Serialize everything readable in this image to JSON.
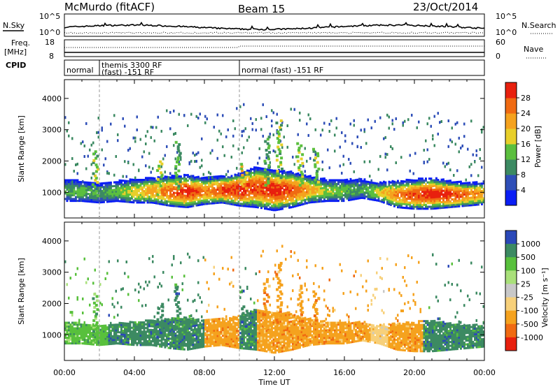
{
  "header": {
    "title": "McMurdo (fitACF)",
    "beam": "Beam 15",
    "date": "23/Oct/2014"
  },
  "strips": {
    "nsky_label": "N.Sky",
    "nsearch_label": "N.Search",
    "nsky_ticks": [
      "10^5",
      "10^0"
    ],
    "nsearch_ticks": [
      "10^5",
      "10^0"
    ],
    "freq_label_1": "Freq.",
    "freq_label_2": "[MHz]",
    "freq_ticks": [
      "18",
      "8"
    ],
    "nave_label": "Nave",
    "nave_ticks": [
      "60",
      "0"
    ],
    "cpid_label": "CPID",
    "cpid_segments": [
      {
        "line1": "normal",
        "line2": "",
        "x_start": 0.0,
        "x_end": 2.0
      },
      {
        "line1": "themis 3300 RF",
        "line2": "(fast) -151 RF",
        "x_start": 2.0,
        "x_end": 10.0
      },
      {
        "line1": "normal (fast) -151 RF",
        "line2": "",
        "x_start": 10.0,
        "x_end": 24.0
      }
    ]
  },
  "chart_data": [
    {
      "type": "heatmap",
      "panel": "power",
      "ylabel": "Slant Range [km]",
      "xlabel": "Time UT",
      "xlim": [
        0,
        24
      ],
      "ylim": [
        180,
        4600
      ],
      "x_ticks": [
        "00:00",
        "04:00",
        "08:00",
        "12:00",
        "16:00",
        "20:00",
        "00:00"
      ],
      "y_ticks": [
        "1000",
        "2000",
        "3000",
        "4000"
      ],
      "colorbar": {
        "label": "Power [dB]",
        "ticks": [
          "28",
          "24",
          "20",
          "16",
          "12",
          "8",
          "4"
        ],
        "range": [
          0,
          32
        ],
        "colors": [
          "#0a1ef5",
          "#2f4fb8",
          "#3c8a62",
          "#5bbf3e",
          "#e8cf2a",
          "#f5a21e",
          "#f06a12",
          "#e8200e"
        ]
      },
      "echo_band": [
        {
          "x": 0.0,
          "low": 700,
          "high": 1400,
          "peak": 12
        },
        {
          "x": 1.0,
          "low": 700,
          "high": 1350,
          "peak": 14
        },
        {
          "x": 2.0,
          "low": 650,
          "high": 1300,
          "peak": 10
        },
        {
          "x": 3.0,
          "low": 700,
          "high": 1350,
          "peak": 14
        },
        {
          "x": 4.0,
          "low": 650,
          "high": 1400,
          "peak": 18
        },
        {
          "x": 5.0,
          "low": 650,
          "high": 1450,
          "peak": 22
        },
        {
          "x": 6.0,
          "low": 550,
          "high": 1500,
          "peak": 26
        },
        {
          "x": 7.0,
          "low": 500,
          "high": 1550,
          "peak": 30
        },
        {
          "x": 8.0,
          "low": 600,
          "high": 1450,
          "peak": 24
        },
        {
          "x": 9.0,
          "low": 650,
          "high": 1500,
          "peak": 28
        },
        {
          "x": 10.0,
          "low": 550,
          "high": 1600,
          "peak": 30
        },
        {
          "x": 11.0,
          "low": 500,
          "high": 1800,
          "peak": 28
        },
        {
          "x": 12.0,
          "low": 400,
          "high": 1700,
          "peak": 30
        },
        {
          "x": 13.0,
          "low": 500,
          "high": 1650,
          "peak": 28
        },
        {
          "x": 14.0,
          "low": 650,
          "high": 1500,
          "peak": 22
        },
        {
          "x": 15.0,
          "low": 700,
          "high": 1400,
          "peak": 16
        },
        {
          "x": 16.0,
          "low": 700,
          "high": 1400,
          "peak": 14
        },
        {
          "x": 17.0,
          "low": 800,
          "high": 1400,
          "peak": 12
        },
        {
          "x": 18.0,
          "low": 700,
          "high": 1300,
          "peak": 18
        },
        {
          "x": 19.0,
          "low": 500,
          "high": 1350,
          "peak": 24
        },
        {
          "x": 20.0,
          "low": 450,
          "high": 1400,
          "peak": 28
        },
        {
          "x": 21.0,
          "low": 450,
          "high": 1450,
          "peak": 30
        },
        {
          "x": 22.0,
          "low": 500,
          "high": 1350,
          "peak": 30
        },
        {
          "x": 23.0,
          "low": 550,
          "high": 1300,
          "peak": 26
        },
        {
          "x": 24.0,
          "low": 600,
          "high": 1300,
          "peak": 22
        }
      ],
      "streaks": [
        {
          "x": 1.7,
          "low": 800,
          "high": 2300,
          "value": 10
        },
        {
          "x": 5.4,
          "low": 900,
          "high": 2000,
          "value": 12
        },
        {
          "x": 6.4,
          "low": 1100,
          "high": 2600,
          "value": 8
        },
        {
          "x": 10.2,
          "low": 1100,
          "high": 1900,
          "value": 14
        },
        {
          "x": 11.5,
          "low": 1200,
          "high": 2800,
          "value": 8
        },
        {
          "x": 12.2,
          "low": 1300,
          "high": 3300,
          "value": 10
        },
        {
          "x": 13.4,
          "low": 1200,
          "high": 2600,
          "value": 12
        },
        {
          "x": 14.3,
          "low": 1300,
          "high": 2400,
          "value": 10
        }
      ]
    },
    {
      "type": "heatmap",
      "panel": "velocity",
      "ylabel": "Slant Range [km]",
      "xlabel": "Time UT",
      "xlim": [
        0,
        24
      ],
      "ylim": [
        180,
        4600
      ],
      "x_ticks": [
        "00:00",
        "04:00",
        "08:00",
        "12:00",
        "16:00",
        "20:00",
        "00:00"
      ],
      "y_ticks": [
        "1000",
        "2000",
        "3000",
        "4000"
      ],
      "colorbar": {
        "label": "Velocity [m s⁻¹]",
        "ticks": [
          "1000",
          "500",
          "100",
          "25",
          "-25",
          "-100",
          "-500",
          "-1000"
        ],
        "colors": [
          "#2a48b8",
          "#3c8a62",
          "#58c03c",
          "#a9e07a",
          "#c8c8c8",
          "#f7d07a",
          "#f5a21e",
          "#f06a12",
          "#e8200e"
        ]
      },
      "segments": [
        {
          "x_start": 0.0,
          "x_end": 2.5,
          "color_index": 2
        },
        {
          "x_start": 2.5,
          "x_end": 8.0,
          "color_index": 1
        },
        {
          "x_start": 8.0,
          "x_end": 10.0,
          "color_index": 6
        },
        {
          "x_start": 10.0,
          "x_end": 11.0,
          "color_index": 1
        },
        {
          "x_start": 11.0,
          "x_end": 17.5,
          "color_index": 6
        },
        {
          "x_start": 17.5,
          "x_end": 18.5,
          "color_index": 5
        },
        {
          "x_start": 18.5,
          "x_end": 20.5,
          "color_index": 6
        },
        {
          "x_start": 20.5,
          "x_end": 24.0,
          "color_index": 1
        }
      ]
    }
  ]
}
